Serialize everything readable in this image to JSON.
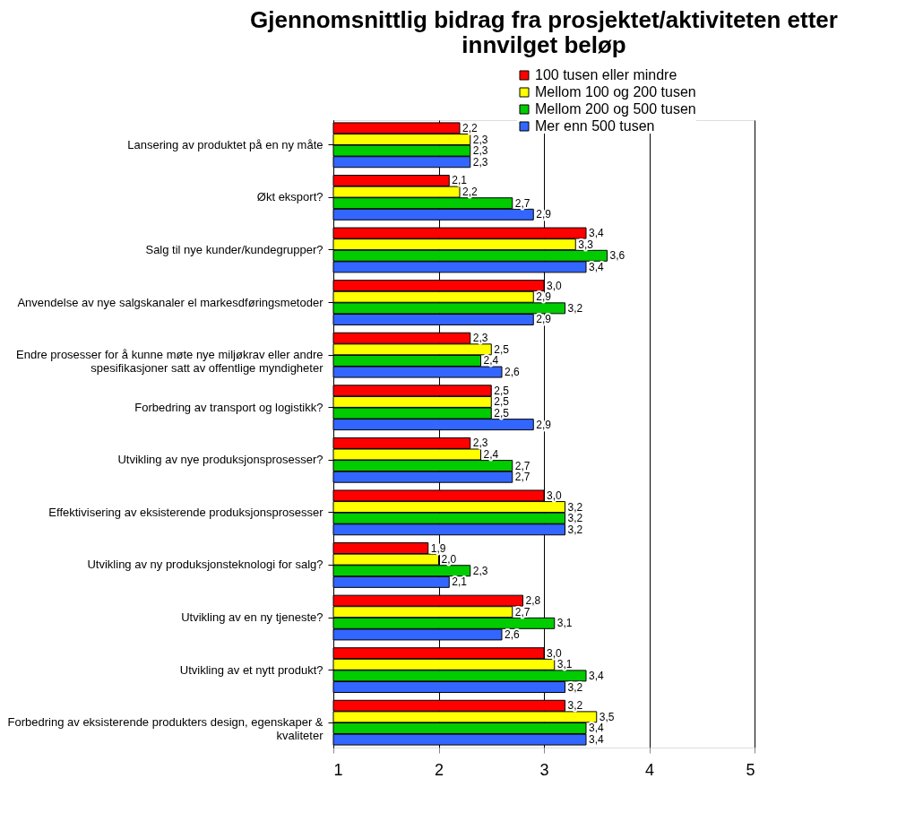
{
  "chart_data": {
    "type": "bar",
    "orientation": "horizontal",
    "title": "Gjennomsnittlig bidrag fra prosjektet/aktiviteten etter innvilget beløp",
    "categories": [
      "Lansering av produktet på en ny måte",
      "Økt eksport?",
      "Salg til nye kunder/kundegrupper?",
      "Anvendelse av nye salgskanaler el markesdføringsmetoder",
      "Endre prosesser for å kunne møte nye miljøkrav eller andre spesifikasjoner satt av offentlige myndigheter",
      "Forbedring av transport og logistikk?",
      "Utvikling av nye produksjonsprosesser?",
      "Effektivisering av eksisterende produksjonsprosesser",
      "Utvikling av ny produksjonsteknologi for salg?",
      "Utvikling av en ny tjeneste?",
      "Utvikling av et nytt produkt?",
      "Forbedring av eksisterende produkters design, egenskaper & kvaliteter"
    ],
    "series": [
      {
        "name": "100 tusen eller mindre",
        "color": "#ff0000",
        "values": [
          2.2,
          2.1,
          3.4,
          3.0,
          2.3,
          2.5,
          2.3,
          3.0,
          1.9,
          2.8,
          3.0,
          3.2
        ],
        "value_labels": [
          "2,2",
          "2,1",
          "3,4",
          "3,0",
          "2,3",
          "2,5",
          "2,3",
          "3,0",
          "1,9",
          "2,8",
          "3,0",
          "3,2"
        ]
      },
      {
        "name": "Mellom 100 og 200 tusen",
        "color": "#ffff00",
        "values": [
          2.3,
          2.2,
          3.3,
          2.9,
          2.5,
          2.5,
          2.4,
          3.2,
          2.0,
          2.7,
          3.1,
          3.5
        ],
        "value_labels": [
          "2,3",
          "2,2",
          "3,3",
          "2,9",
          "2,5",
          "2,5",
          "2,4",
          "3,2",
          "2,0",
          "2,7",
          "3,1",
          "3,5"
        ]
      },
      {
        "name": "Mellom 200 og 500 tusen",
        "color": "#00cc00",
        "values": [
          2.3,
          2.7,
          3.6,
          3.2,
          2.4,
          2.5,
          2.7,
          3.2,
          2.3,
          3.1,
          3.4,
          3.4
        ],
        "value_labels": [
          "2,3",
          "2,7",
          "3,6",
          "3,2",
          "2,4",
          "2,5",
          "2,7",
          "3,2",
          "2,3",
          "3,1",
          "3,4",
          "3,4"
        ]
      },
      {
        "name": "Mer enn 500 tusen",
        "color": "#3366ff",
        "values": [
          2.3,
          2.9,
          3.4,
          2.9,
          2.6,
          2.9,
          2.7,
          3.2,
          2.1,
          2.6,
          3.2,
          3.4
        ],
        "value_labels": [
          "2,3",
          "2,9",
          "3,4",
          "2,9",
          "2,6",
          "2,9",
          "2,7",
          "3,2",
          "2,1",
          "2,6",
          "3,2",
          "3,4"
        ]
      }
    ],
    "xlim": [
      1,
      5
    ],
    "xticks": [
      1,
      2,
      3,
      4,
      5
    ],
    "grid": "x",
    "legend": "top right"
  }
}
